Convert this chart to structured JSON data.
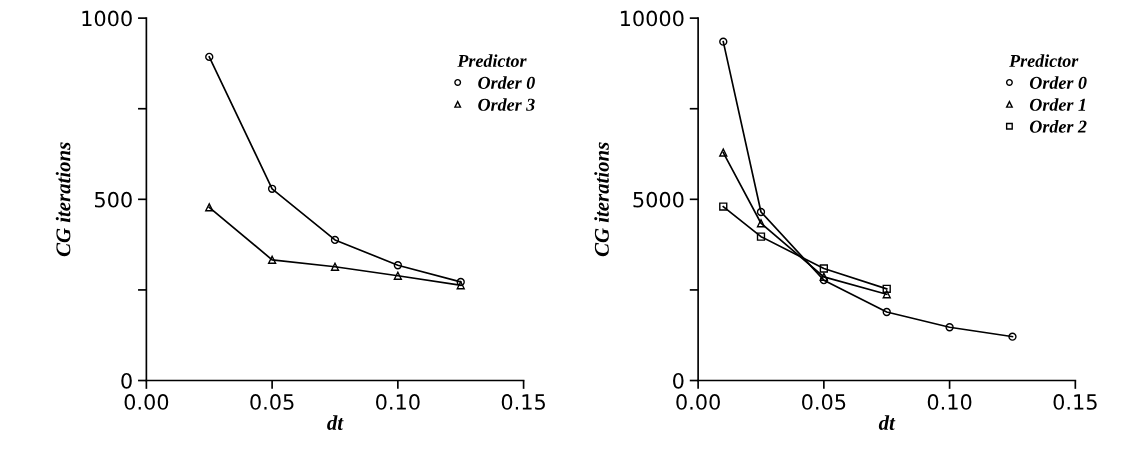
{
  "chart_data": [
    {
      "type": "line",
      "xlabel": "dt",
      "ylabel": "CG iterations",
      "legend_title": "Predictor",
      "legend": "top right",
      "line_style": "solid",
      "grid": false,
      "xlim": [
        0.0,
        0.15
      ],
      "xticks": [
        {
          "value": 0.0,
          "label": "0.00"
        },
        {
          "value": 0.05,
          "label": "0.05"
        },
        {
          "value": 0.1,
          "label": "0.10"
        },
        {
          "value": 0.15,
          "label": "0.15"
        }
      ],
      "ylim": [
        0,
        1000
      ],
      "yticks": [
        0,
        {
          "value": 250,
          "label": null
        },
        500,
        {
          "value": 750,
          "label": null
        },
        1000
      ],
      "series": [
        {
          "name": "Order 0",
          "color": "#000000",
          "marker": "circle",
          "x": [
            0.025,
            0.05,
            0.075,
            0.1,
            0.125
          ],
          "values": [
            893,
            529,
            388,
            318,
            272
          ]
        },
        {
          "name": "Order 3",
          "color": "#000000",
          "marker": "triangle",
          "x": [
            0.025,
            0.05,
            0.075,
            0.1,
            0.125
          ],
          "values": [
            478,
            333,
            314,
            289,
            263
          ]
        }
      ]
    },
    {
      "type": "line",
      "xlabel": "dt",
      "ylabel": "CG iterations",
      "legend_title": "Predictor",
      "legend": "top right",
      "line_style": "solid",
      "grid": false,
      "xlim": [
        0.0,
        0.15
      ],
      "xticks": [
        {
          "value": 0.0,
          "label": "0.00"
        },
        {
          "value": 0.05,
          "label": "0.05"
        },
        {
          "value": 0.1,
          "label": "0.10"
        },
        {
          "value": 0.15,
          "label": "0.15"
        }
      ],
      "ylim": [
        0,
        10000
      ],
      "yticks": [
        0,
        {
          "value": 2500,
          "label": null
        },
        5000,
        {
          "value": 7500,
          "label": null
        },
        10000
      ],
      "series": [
        {
          "name": "Order 0",
          "color": "#000000",
          "marker": "circle",
          "x": [
            0.01,
            0.025,
            0.05,
            0.075,
            0.1,
            0.125
          ],
          "values": [
            9350,
            4650,
            2770,
            1890,
            1470,
            1210
          ]
        },
        {
          "name": "Order 1",
          "color": "#000000",
          "marker": "triangle",
          "x": [
            0.01,
            0.025,
            0.05,
            0.075
          ],
          "values": [
            6290,
            4340,
            2860,
            2380
          ]
        },
        {
          "name": "Order 2",
          "color": "#000000",
          "marker": "square",
          "x": [
            0.01,
            0.025,
            0.05,
            0.075
          ],
          "values": [
            4800,
            3970,
            3090,
            2530
          ]
        }
      ]
    }
  ]
}
